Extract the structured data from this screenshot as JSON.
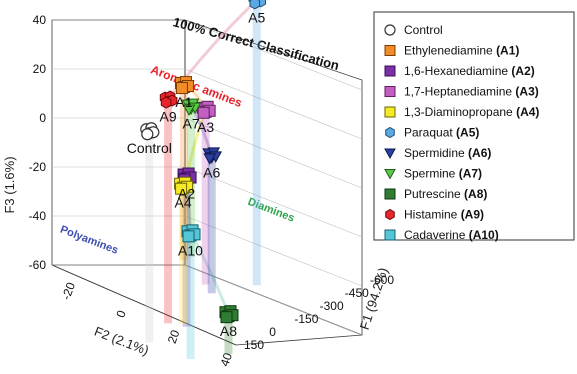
{
  "chart_data": {
    "type": "scatter",
    "title": "100% Correct Classification",
    "axes": {
      "x": {
        "label": "F1 (94.2%)",
        "ticks": [
          -600,
          -450,
          -300,
          -150,
          0,
          150
        ],
        "range": [
          -600,
          150
        ]
      },
      "y": {
        "label": "F2 (2.1%)",
        "ticks": [
          -20,
          0,
          20,
          40
        ],
        "range": [
          -30,
          40
        ]
      },
      "z": {
        "label": "F3 (1.6%)",
        "ticks": [
          -60,
          -40,
          -20,
          0,
          20,
          40
        ],
        "range": [
          -60,
          40
        ]
      }
    },
    "legend": {
      "placement": "right",
      "entries": [
        {
          "name": "Control",
          "code": "",
          "marker": "circle-open",
          "color": "#ffffff",
          "edge": "#333333"
        },
        {
          "name": "Ethylenediamine ",
          "code": "(A1)",
          "marker": "square",
          "color": "#f28c28",
          "edge": "#7a3c00"
        },
        {
          "name": "1,6-Hexanediamine ",
          "code": "(A2)",
          "marker": "square",
          "color": "#7b2fa8",
          "edge": "#3a0f55"
        },
        {
          "name": "1,7-Heptanediamine ",
          "code": "(A3)",
          "marker": "square",
          "color": "#c35fc2",
          "edge": "#5e1f5e"
        },
        {
          "name": "1,3-Diaminopropane ",
          "code": "(A4)",
          "marker": "square",
          "color": "#f5ea25",
          "edge": "#6b6500"
        },
        {
          "name": "Paraquat ",
          "code": "(A5)",
          "marker": "hexagon",
          "color": "#5ba8e3",
          "edge": "#1e4f7a"
        },
        {
          "name": "Spermidine ",
          "code": "(A6)",
          "marker": "triangle-down",
          "color": "#2b3f9e",
          "edge": "#0f1850"
        },
        {
          "name": "Spermine ",
          "code": "(A7)",
          "marker": "triangle-down",
          "color": "#5cc84a",
          "edge": "#1e5e12"
        },
        {
          "name": "Putrescine ",
          "code": "(A8)",
          "marker": "square",
          "color": "#2e7d32",
          "edge": "#0e3a10"
        },
        {
          "name": "Histamine ",
          "code": "(A9)",
          "marker": "hexagon",
          "color": "#e8242c",
          "edge": "#6e0a0e"
        },
        {
          "name": "Cadaverine ",
          "code": "(A10)",
          "marker": "square",
          "color": "#55c6d8",
          "edge": "#15606c"
        }
      ]
    },
    "group_annotations": [
      {
        "text": "Aromatic amines",
        "color": "#e8242c"
      },
      {
        "text": "Diamines",
        "color": "#2ea24a"
      },
      {
        "text": "Polyamines",
        "color": "#3d4fb0"
      }
    ],
    "points": [
      {
        "label": "Control",
        "x": 120,
        "y": 5,
        "z": 10
      },
      {
        "label": "A1",
        "x": -520,
        "y": -25,
        "z": -5
      },
      {
        "label": "A2",
        "x": -90,
        "y": 5,
        "z": -15
      },
      {
        "label": "A3",
        "x": -420,
        "y": -10,
        "z": -5
      },
      {
        "label": "A4",
        "x": -100,
        "y": 3,
        "z": -20
      },
      {
        "label": "A5",
        "x": -560,
        "y": 0,
        "z": 40
      },
      {
        "label": "A6",
        "x": -380,
        "y": -5,
        "z": -20
      },
      {
        "label": "A7",
        "x": -560,
        "y": -25,
        "z": -15
      },
      {
        "label": "A8",
        "x": -30,
        "y": 25,
        "z": -60
      },
      {
        "label": "A9",
        "x": -60,
        "y": 0,
        "z": 15
      },
      {
        "label": "A10",
        "x": 110,
        "y": 20,
        "z": -25
      }
    ]
  }
}
